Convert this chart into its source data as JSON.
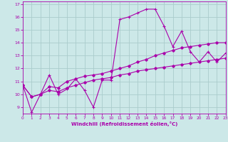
{
  "xlabel": "Windchill (Refroidissement éolien,°C)",
  "background_color": "#cce8e8",
  "grid_color": "#aacccc",
  "line_color": "#aa00aa",
  "x_min": 0,
  "x_max": 23,
  "y_min": 8.5,
  "y_max": 17.2,
  "series1_x": [
    0,
    1,
    2,
    3,
    4,
    5,
    6,
    7,
    8,
    9,
    10,
    11,
    12,
    13,
    14,
    15,
    16,
    17,
    18,
    19,
    20,
    21,
    22,
    23
  ],
  "series1_y": [
    10.7,
    8.6,
    10.0,
    11.5,
    10.0,
    10.4,
    11.2,
    10.3,
    9.0,
    11.1,
    11.1,
    15.8,
    16.0,
    16.3,
    16.6,
    16.6,
    15.3,
    13.7,
    14.9,
    13.3,
    12.5,
    13.3,
    12.5,
    13.2
  ],
  "series2_x": [
    0,
    1,
    2,
    3,
    4,
    5,
    6,
    7,
    8,
    9,
    10,
    11,
    12,
    13,
    14,
    15,
    16,
    17,
    18,
    19,
    20,
    21,
    22,
    23
  ],
  "series2_y": [
    10.7,
    9.8,
    10.0,
    10.6,
    10.5,
    11.0,
    11.2,
    11.4,
    11.5,
    11.6,
    11.8,
    12.0,
    12.2,
    12.5,
    12.7,
    13.0,
    13.2,
    13.4,
    13.6,
    13.7,
    13.8,
    13.9,
    14.0,
    14.0
  ],
  "series3_x": [
    0,
    1,
    2,
    3,
    4,
    5,
    6,
    7,
    8,
    9,
    10,
    11,
    12,
    13,
    14,
    15,
    16,
    17,
    18,
    19,
    20,
    21,
    22,
    23
  ],
  "series3_y": [
    10.7,
    9.8,
    10.0,
    10.3,
    10.2,
    10.5,
    10.7,
    10.9,
    11.1,
    11.2,
    11.3,
    11.5,
    11.6,
    11.8,
    11.9,
    12.0,
    12.1,
    12.2,
    12.3,
    12.4,
    12.5,
    12.6,
    12.7,
    12.8
  ]
}
